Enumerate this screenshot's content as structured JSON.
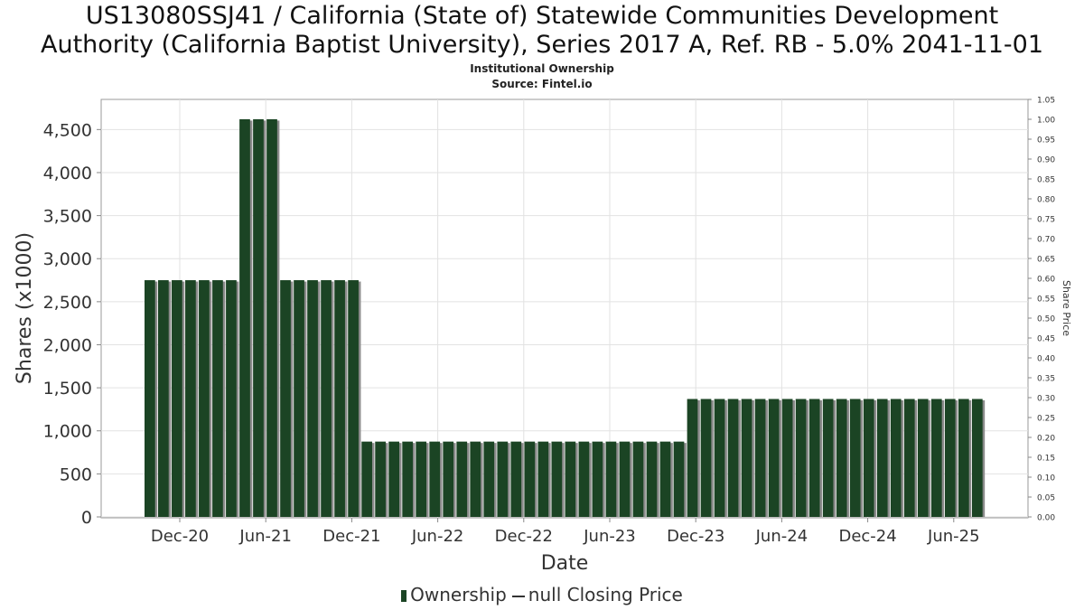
{
  "chart_data": {
    "type": "bar",
    "title_line1": "US13080SSJ41 / California (State of) Statewide Communities Development",
    "title_line2": "Authority (California Baptist University), Series 2017 A, Ref. RB - 5.0% 2041-11-01",
    "subtitle": "Institutional Ownership",
    "source": "Source: Fintel.io",
    "xlabel": "Date",
    "ylabel": "Shares (x1000)",
    "y2label": "Share Price",
    "ylim": [
      0,
      4850
    ],
    "y2lim": [
      0,
      1.05
    ],
    "y_ticks": [
      "0",
      "500",
      "1,000",
      "1,500",
      "2,000",
      "2,500",
      "3,000",
      "3,500",
      "4,000",
      "4,500"
    ],
    "y2_ticks": [
      "0.00",
      "0.05",
      "0.10",
      "0.15",
      "0.20",
      "0.25",
      "0.30",
      "0.35",
      "0.40",
      "0.45",
      "0.50",
      "0.55",
      "0.60",
      "0.65",
      "0.70",
      "0.75",
      "0.80",
      "0.85",
      "0.90",
      "0.95",
      "1.00",
      "1.05"
    ],
    "x_ticks": [
      "Dec-20",
      "Jun-21",
      "Dec-21",
      "Jun-22",
      "Dec-22",
      "Jun-23",
      "Dec-23",
      "Jun-24",
      "Dec-24",
      "Jun-25"
    ],
    "grid": true,
    "legend_position": "bottom",
    "series": [
      {
        "name": "Ownership",
        "color": "#1b4424",
        "values": [
          2750,
          2750,
          2750,
          2750,
          2750,
          2750,
          2750,
          4620,
          4620,
          4620,
          2750,
          2750,
          2750,
          2750,
          2750,
          2750,
          875,
          875,
          875,
          875,
          875,
          875,
          875,
          875,
          875,
          875,
          875,
          875,
          875,
          875,
          875,
          875,
          875,
          875,
          875,
          875,
          875,
          875,
          875,
          875,
          1370,
          1370,
          1370,
          1370,
          1370,
          1370,
          1370,
          1370,
          1370,
          1370,
          1370,
          1370,
          1370,
          1370,
          1370,
          1370,
          1370,
          1370,
          1370,
          1370,
          1370,
          1370
        ]
      },
      {
        "name": "null Closing Price",
        "color": "#333333",
        "values": []
      }
    ]
  }
}
